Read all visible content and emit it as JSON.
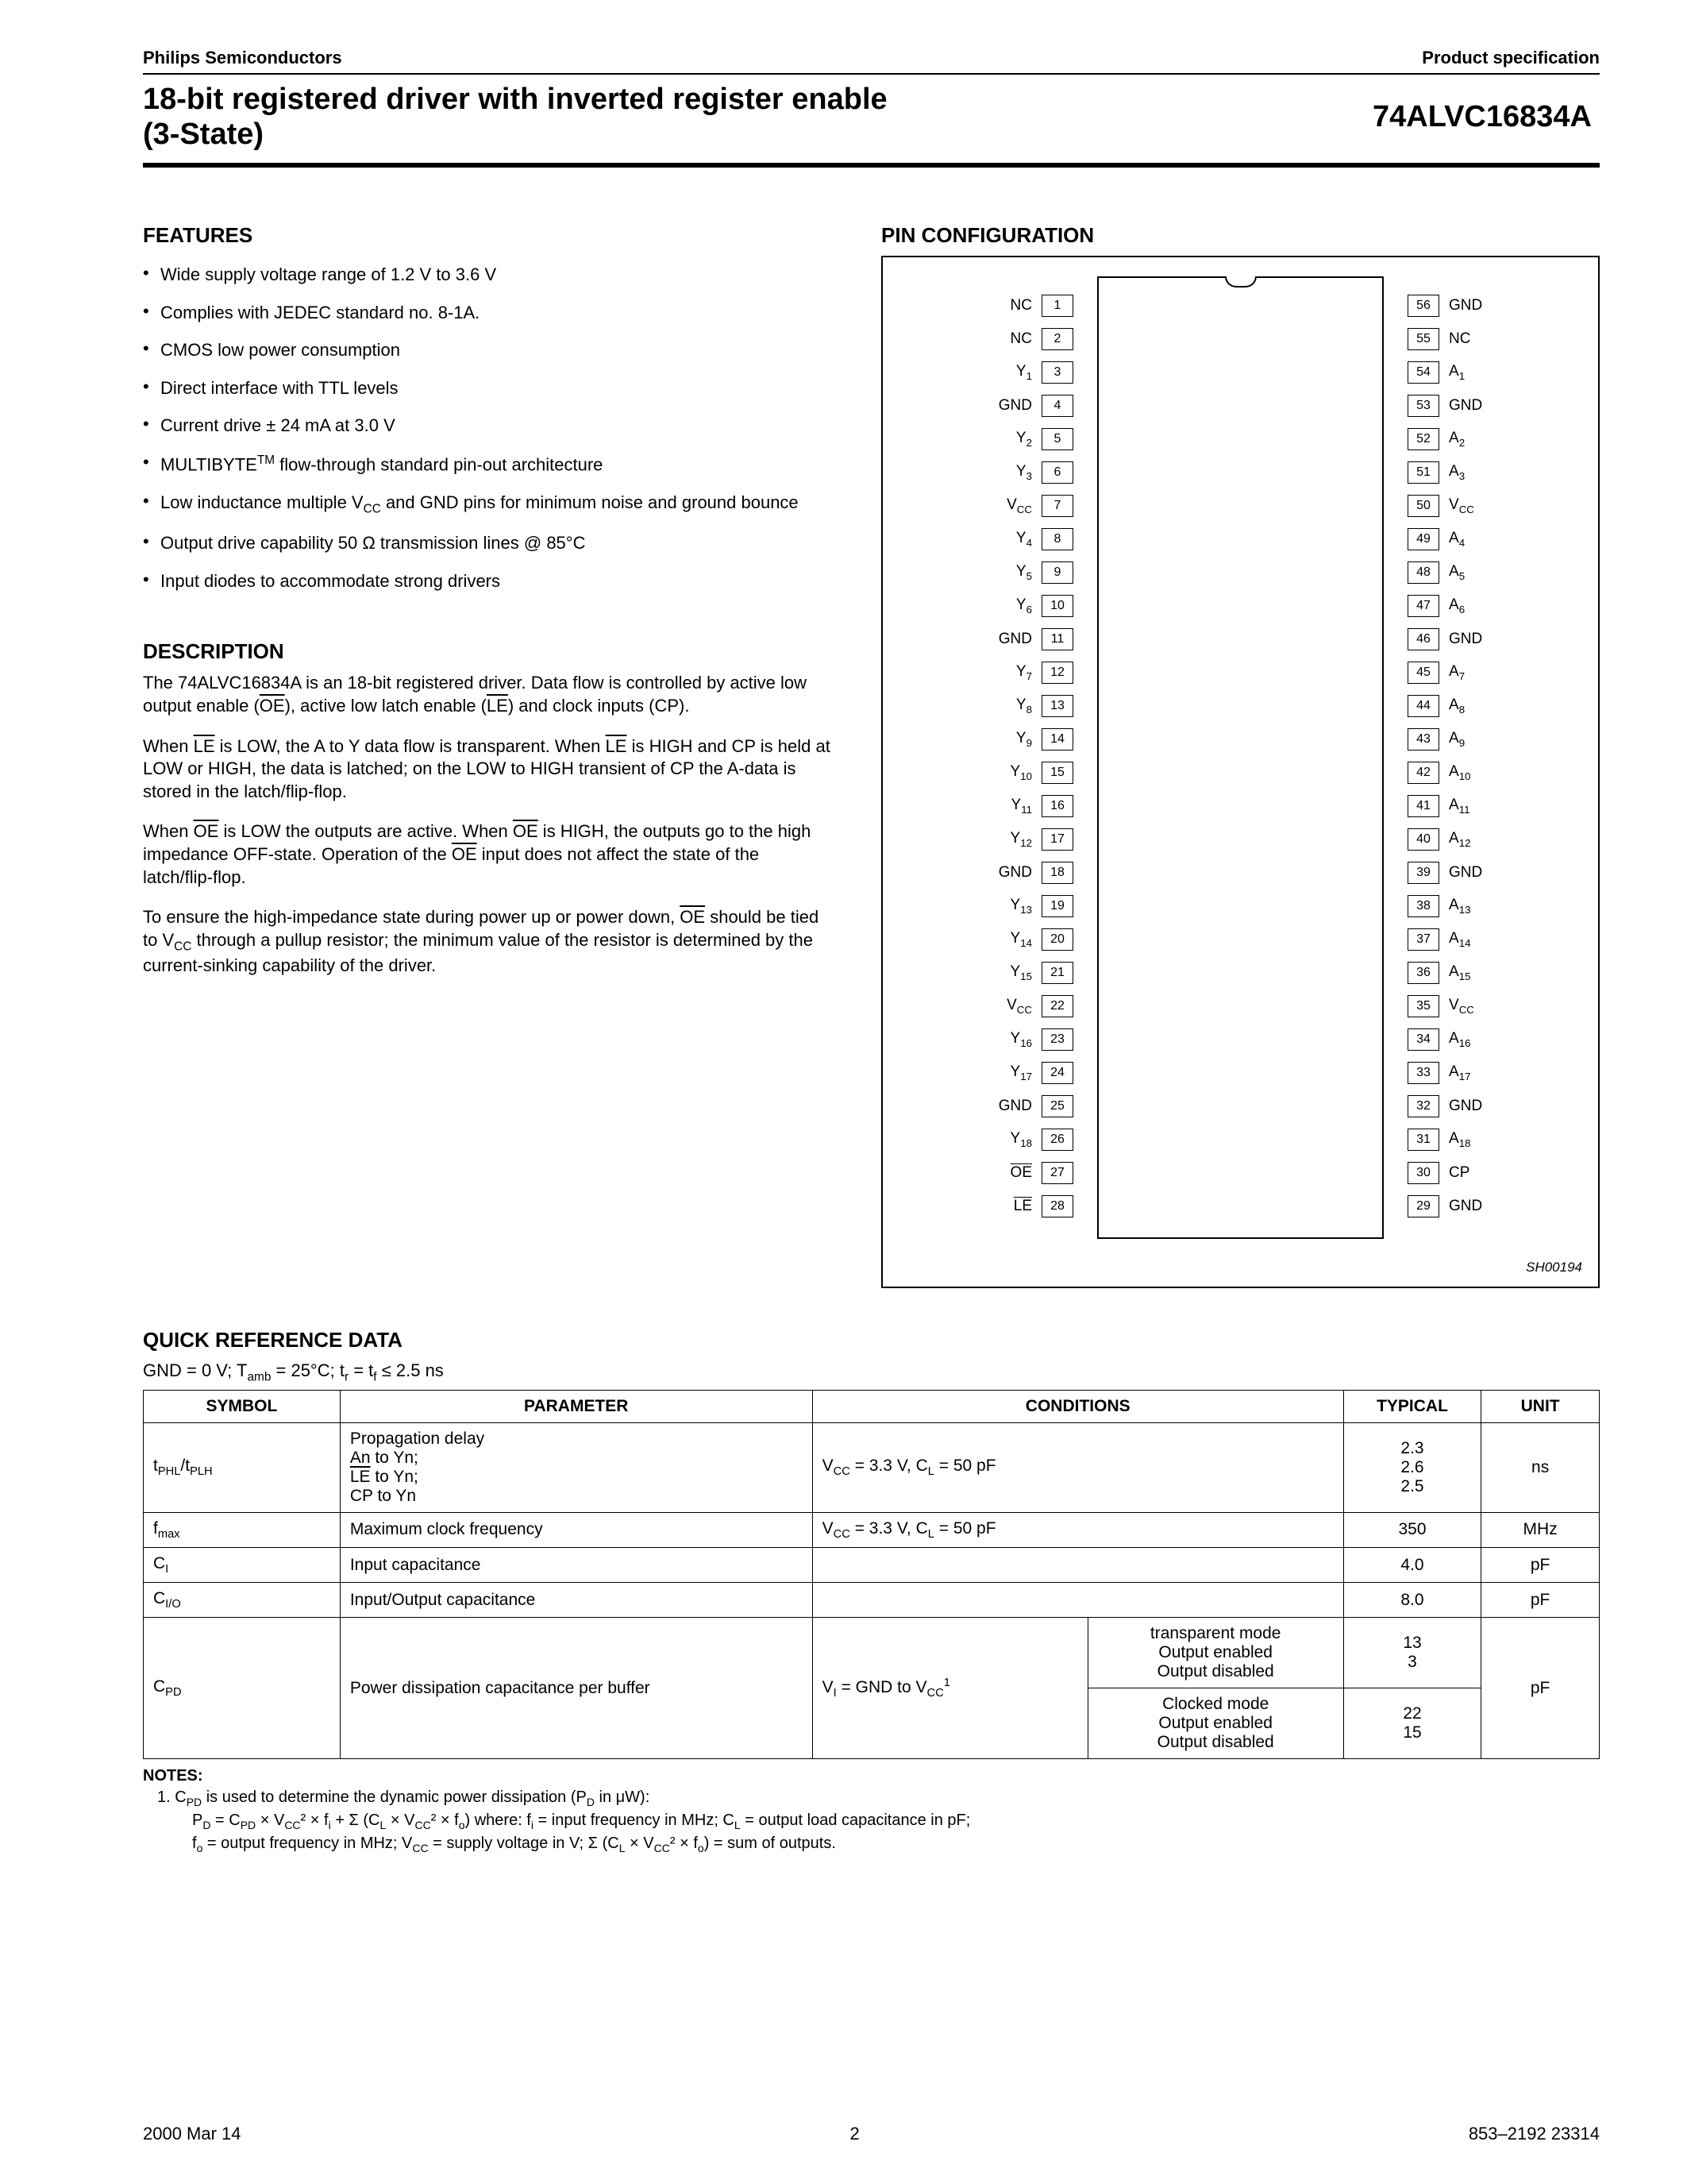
{
  "header": {
    "left": "Philips Semiconductors",
    "right": "Product specification"
  },
  "title": {
    "line1": "18-bit registered driver with inverted register enable",
    "line2": "(3-State)",
    "part": "74ALVC16834A"
  },
  "features": {
    "heading": "FEATURES",
    "items": [
      "Wide supply voltage range of 1.2 V to 3.6 V",
      "Complies with JEDEC standard no. 8-1A.",
      "CMOS low power consumption",
      "Direct interface with TTL levels",
      "Current drive ± 24 mA at 3.0 V",
      "MULTIBYTE™ flow-through standard pin-out architecture",
      "Low inductance multiple V_CC and GND pins for minimum noise and ground bounce",
      "Output drive capability 50 Ω transmission lines @ 85°C",
      "Input diodes to accommodate strong drivers"
    ]
  },
  "description": {
    "heading": "DESCRIPTION",
    "p1a": "The 74ALVC16834A is an 18-bit registered driver. Data flow is controlled by active low output enable (",
    "p1b": "), active low latch enable (",
    "p1c": ") and clock inputs (CP).",
    "p2a": "When ",
    "p2b": " is LOW, the A to Y data flow is transparent. When ",
    "p2c": " is HIGH and CP is held at LOW or HIGH, the data is latched; on the LOW to HIGH transient of CP the A-data is stored in the latch/flip-flop.",
    "p3a": "When ",
    "p3b": " is LOW the outputs are active. When ",
    "p3c": " is HIGH, the outputs go to the high impedance OFF-state. Operation of the ",
    "p3d": " input does not affect the state of the latch/flip-flop.",
    "p4a": "To ensure the high-impedance state during power up or power down, ",
    "p4b": " should be tied to V",
    "p4c": " through a pullup resistor; the minimum value of the resistor is determined by the current-sinking capability of the driver.",
    "OE": "OE",
    "LE": "LE",
    "CC": "CC"
  },
  "pinconfig": {
    "heading": "PIN CONFIGURATION",
    "code": "SH00194",
    "left": [
      {
        "label": "NC",
        "num": "1"
      },
      {
        "label": "NC",
        "num": "2"
      },
      {
        "label": "Y₁",
        "num": "3"
      },
      {
        "label": "GND",
        "num": "4"
      },
      {
        "label": "Y₂",
        "num": "5"
      },
      {
        "label": "Y₃",
        "num": "6"
      },
      {
        "label": "V_CC",
        "num": "7"
      },
      {
        "label": "Y₄",
        "num": "8"
      },
      {
        "label": "Y₅",
        "num": "9"
      },
      {
        "label": "Y₆",
        "num": "10"
      },
      {
        "label": "GND",
        "num": "11"
      },
      {
        "label": "Y₇",
        "num": "12"
      },
      {
        "label": "Y₈",
        "num": "13"
      },
      {
        "label": "Y₉",
        "num": "14"
      },
      {
        "label": "Y₁₀",
        "num": "15"
      },
      {
        "label": "Y₁₁",
        "num": "16"
      },
      {
        "label": "Y₁₂",
        "num": "17"
      },
      {
        "label": "GND",
        "num": "18"
      },
      {
        "label": "Y₁₃",
        "num": "19"
      },
      {
        "label": "Y₁₄",
        "num": "20"
      },
      {
        "label": "Y₁₅",
        "num": "21"
      },
      {
        "label": "V_CC",
        "num": "22"
      },
      {
        "label": "Y₁₆",
        "num": "23"
      },
      {
        "label": "Y₁₇",
        "num": "24"
      },
      {
        "label": "GND",
        "num": "25"
      },
      {
        "label": "Y₁₈",
        "num": "26"
      },
      {
        "label": "OE",
        "num": "27",
        "ov": true
      },
      {
        "label": "LE",
        "num": "28",
        "ov": true
      }
    ],
    "right": [
      {
        "label": "GND",
        "num": "56"
      },
      {
        "label": "NC",
        "num": "55"
      },
      {
        "label": "A₁",
        "num": "54"
      },
      {
        "label": "GND",
        "num": "53"
      },
      {
        "label": "A₂",
        "num": "52"
      },
      {
        "label": "A₃",
        "num": "51"
      },
      {
        "label": "V_CC",
        "num": "50"
      },
      {
        "label": "A₄",
        "num": "49"
      },
      {
        "label": "A₅",
        "num": "48"
      },
      {
        "label": "A₆",
        "num": "47"
      },
      {
        "label": "GND",
        "num": "46"
      },
      {
        "label": "A₇",
        "num": "45"
      },
      {
        "label": "A₈",
        "num": "44"
      },
      {
        "label": "A₉",
        "num": "43"
      },
      {
        "label": "A₁₀",
        "num": "42"
      },
      {
        "label": "A₁₁",
        "num": "41"
      },
      {
        "label": "A₁₂",
        "num": "40"
      },
      {
        "label": "GND",
        "num": "39"
      },
      {
        "label": "A₁₃",
        "num": "38"
      },
      {
        "label": "A₁₄",
        "num": "37"
      },
      {
        "label": "A₁₅",
        "num": "36"
      },
      {
        "label": "V_CC",
        "num": "35"
      },
      {
        "label": "A₁₆",
        "num": "34"
      },
      {
        "label": "A₁₇",
        "num": "33"
      },
      {
        "label": "GND",
        "num": "32"
      },
      {
        "label": "A₁₈",
        "num": "31"
      },
      {
        "label": "CP",
        "num": "30"
      },
      {
        "label": "GND",
        "num": "29"
      }
    ]
  },
  "qref": {
    "heading": "QUICK REFERENCE DATA",
    "cond_line_a": "GND = 0 V; T",
    "cond_line_b": " = 25°C; t",
    "cond_line_c": " = t",
    "cond_line_d": " ≤ 2.5 ns",
    "amb": "amb",
    "r": "r",
    "f": "f",
    "headers": {
      "sym": "SYMBOL",
      "param": "PARAMETER",
      "cond": "CONDITIONS",
      "typ": "TYPICAL",
      "unit": "UNIT"
    },
    "r1": {
      "sym_a": "t",
      "sym_b": "/t",
      "PHL": "PHL",
      "PLH": "PLH",
      "param_a": "Propagation delay",
      "param_b": "An to Yn;",
      "param_c": " to Yn;",
      "param_d": "CP to Yn",
      "cond_a": "V",
      "cond_b": " = 3.3 V, C",
      "cond_c": " = 50 pF",
      "CC": "CC",
      "L": "L",
      "typ": "2.3\n2.6\n2.5",
      "unit": "ns",
      "LE": "LE"
    },
    "r2": {
      "sym_a": "f",
      "max": "max",
      "param": "Maximum clock frequency",
      "cond_a": "V",
      "cond_b": " = 3.3 V, C",
      "cond_c": " = 50 pF",
      "CC": "CC",
      "L": "L",
      "typ": "350",
      "unit": "MHz"
    },
    "r3": {
      "sym_a": "C",
      "I": "I",
      "param": "Input capacitance",
      "typ": "4.0",
      "unit": "pF"
    },
    "r4": {
      "sym_a": "C",
      "IO": "I/O",
      "param": "Input/Output capacitance",
      "typ": "8.0",
      "unit": "pF"
    },
    "r5": {
      "sym_a": "C",
      "PD": "PD",
      "param": "Power dissipation capacitance per buffer",
      "cond_a": "V",
      "cond_b": " = GND to V",
      "I": "I",
      "CC": "CC",
      "sup1": "1",
      "mode1_a": "transparent mode",
      "mode1_b": "Output enabled",
      "mode1_c": "Output disabled",
      "mode2_a": "Clocked mode",
      "mode2_b": "Output enabled",
      "mode2_c": "Output disabled",
      "typ1": "13\n3",
      "typ2": "22\n15",
      "unit": "pF"
    }
  },
  "notes": {
    "head": "NOTES:",
    "n1a": "1.  C",
    "PD": "PD",
    "n1b": " is used to determine the dynamic power dissipation (P",
    "D": "D",
    "n1c": " in μW):",
    "eq_a": "P",
    "eq_b": " = C",
    "eq_c": " × V",
    "CC": "CC",
    "eq_d": "² × f",
    "i": "i",
    "eq_e": " + Σ (C",
    "L": "L",
    "eq_f": " × V",
    "eq_g": "² × f",
    "o": "o",
    "eq_h": ") where: f",
    "eq_i": " = input frequency in MHz; C",
    "eq_j": " = output load capacitance in pF;",
    "eq2_a": "f",
    "eq2_b": " = output frequency in MHz; V",
    "eq2_c": " = supply voltage in V; Σ (C",
    "eq2_d": " × V",
    "eq2_e": "² × f",
    "eq2_f": ") = sum of outputs."
  },
  "footer": {
    "date": "2000 Mar 14",
    "page": "2",
    "doc": "853–2192 23314"
  }
}
